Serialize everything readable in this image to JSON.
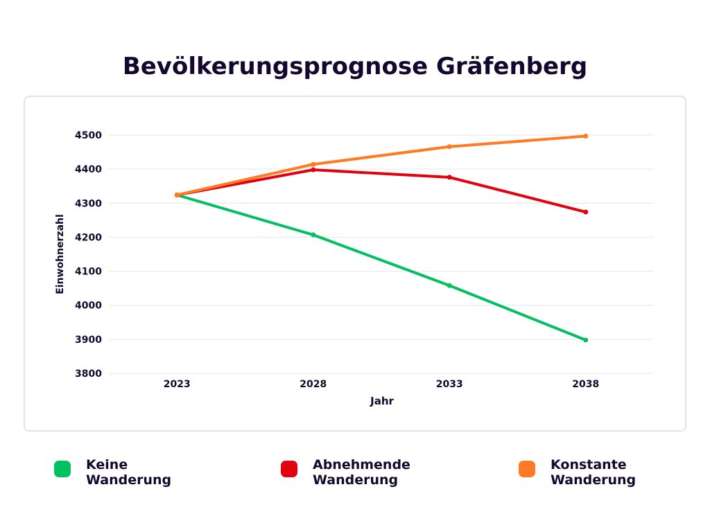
{
  "chart_data": {
    "type": "line",
    "title": "Bevölkerungsprognose Gräfenberg",
    "xlabel": "Jahr",
    "ylabel": "Einwohnerzahl",
    "categories": [
      "2023",
      "2028",
      "2033",
      "2038"
    ],
    "ylim": [
      3800,
      4500
    ],
    "yticks": [
      "3800",
      "3900",
      "4000",
      "4100",
      "4200",
      "4300",
      "4400",
      "4500"
    ],
    "grid": true,
    "legend_placement": "bottom",
    "series": [
      {
        "name": "Keine Wanderung",
        "color": "#00c060",
        "values": [
          4324,
          4207,
          4058,
          3898
        ]
      },
      {
        "name": "Abnehmende Wanderung",
        "color": "#e3000f",
        "values": [
          4324,
          4398,
          4376,
          4274
        ]
      },
      {
        "name": "Konstante Wanderung",
        "color": "#ff7a22",
        "values": [
          4324,
          4414,
          4466,
          4497
        ]
      }
    ]
  }
}
